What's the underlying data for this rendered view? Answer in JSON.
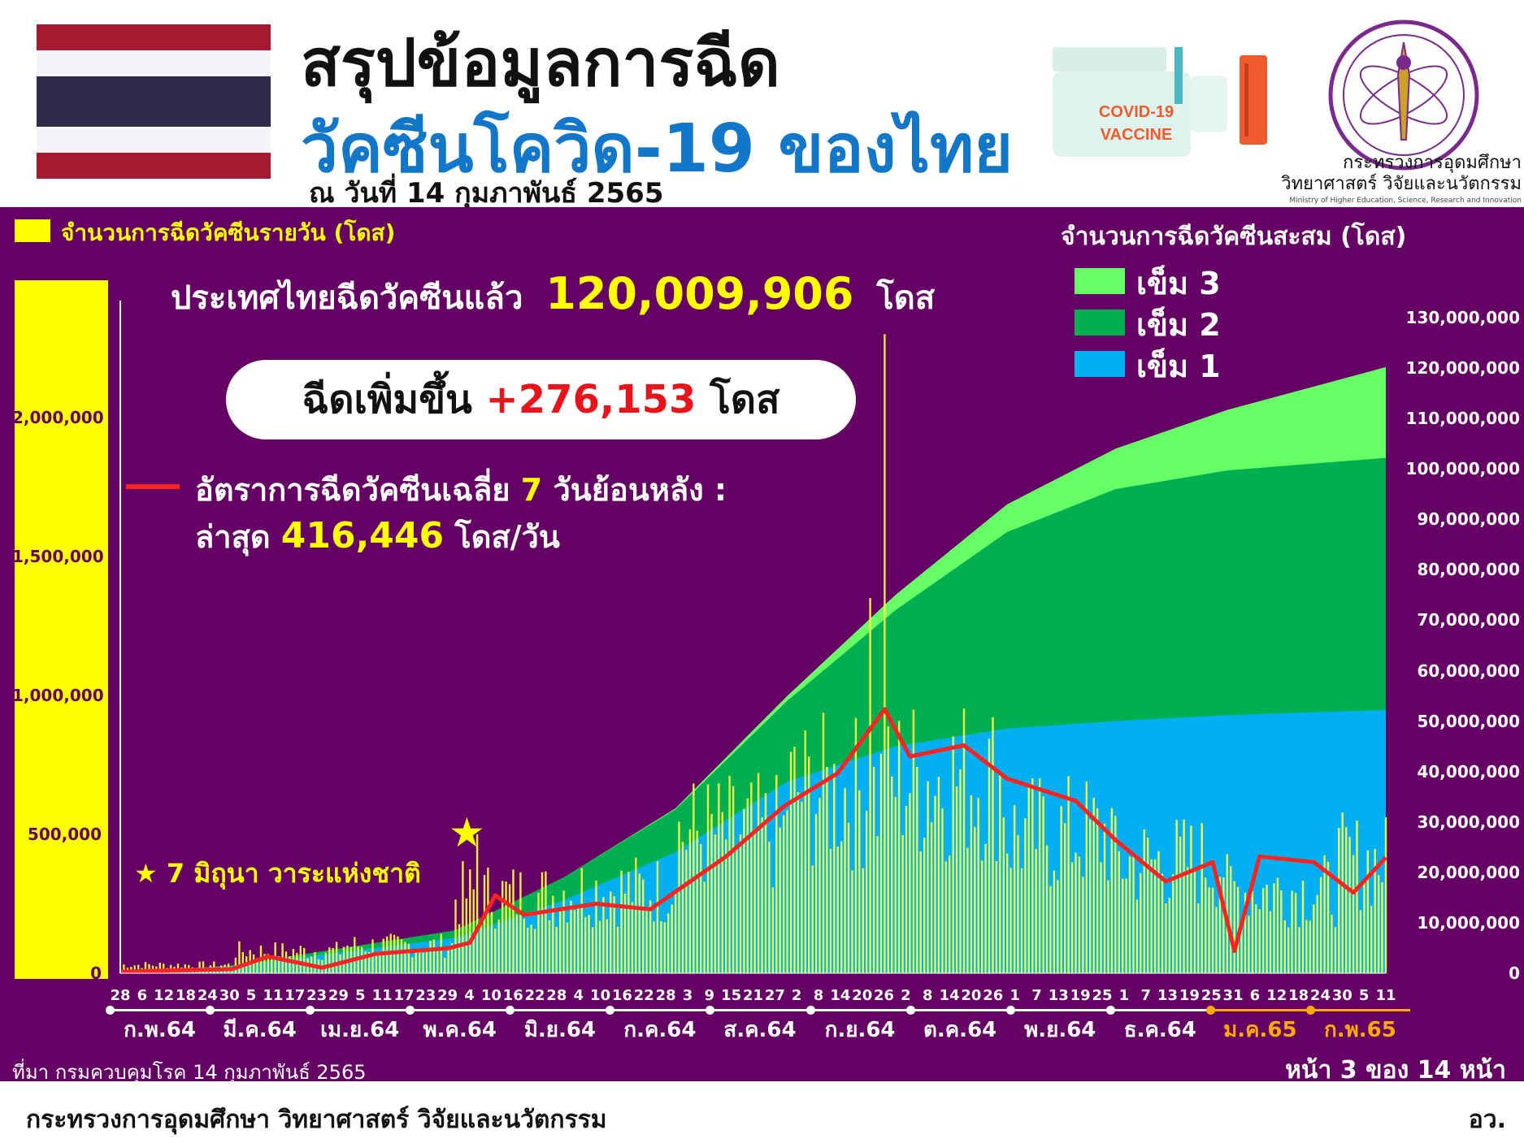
{
  "header": {
    "title_line1": "สรุปข้อมูลการฉีด",
    "title_line2": "วัคซีนโควิด-19 ของไทย",
    "date": "ณ วันที่ 14 กุมภาพันธ์ 2565",
    "vaccine_label_1": "COVID-19",
    "vaccine_label_2": "VACCINE",
    "ministry_th": "กระทรวงการอุดมศึกษา",
    "ministry_th_2": "วิทยาศาสตร์ วิจัยและนวัตกรรม",
    "ministry_en": "Ministry of Higher Education, Science, Research and Innovation",
    "colors": {
      "title_blue": "#1277c9",
      "panel": "#650065",
      "highlight": "#ffff00",
      "increase": "#e8141c"
    }
  },
  "summary": {
    "total_prefix": "ประเทศไทยฉีดวัคซีนแล้ว",
    "total_value": "120,009,906",
    "total_unit": "โดส",
    "increase_prefix": "ฉีดเพิ่มขึ้น",
    "increase_value": "+276,153",
    "increase_unit": "โดส",
    "avg_label_pre": "อัตราการฉีดวัคซีนเฉลี่ย",
    "avg_days": "7",
    "avg_label_post": "วันย้อนหลัง :",
    "avg_latest_label": "ล่าสุด",
    "avg_latest_value": "416,446",
    "avg_latest_unit": "โดส/วัน",
    "star_note": "7 มิถุนา วาระแห่งชาติ"
  },
  "legend": {
    "left_title": "จำนวนการฉีดวัคซีนรายวัน (โดส)",
    "right_title": "จำนวนการฉีดวัคซีนสะสม (โดส)",
    "items": [
      {
        "label": "เข็ม 3",
        "color": "#66ff66"
      },
      {
        "label": "เข็ม 2",
        "color": "#00b050"
      },
      {
        "label": "เข็ม 1",
        "color": "#00b0f0"
      }
    ]
  },
  "chart_data": {
    "type": "bar",
    "title": "",
    "left_axis": {
      "label": "จำนวนการฉีดวัคซีนรายวัน (โดส)",
      "ylim": [
        0,
        2450000
      ],
      "ticks": [
        "0",
        "500,000",
        "1,000,000",
        "1,500,000",
        "2,000,000"
      ]
    },
    "right_axis": {
      "label": "จำนวนการฉีดวัคซีนสะสม (โดส)",
      "ylim": [
        0,
        135000000
      ],
      "ticks": [
        "0",
        "10,000,000",
        "20,000,000",
        "30,000,000",
        "40,000,000",
        "50,000,000",
        "60,000,000",
        "70,000,000",
        "80,000,000",
        "90,000,000",
        "100,000,000",
        "110,000,000",
        "120,000,000",
        "130,000,000"
      ]
    },
    "x_day_ticks": [
      "28",
      "6",
      "12",
      "18",
      "24",
      "30",
      "5",
      "11",
      "17",
      "23",
      "29",
      "5",
      "11",
      "17",
      "23",
      "29",
      "4",
      "10",
      "16",
      "22",
      "28",
      "4",
      "10",
      "16",
      "22",
      "28",
      "3",
      "9",
      "15",
      "21",
      "27",
      "2",
      "8",
      "14",
      "20",
      "26",
      "2",
      "8",
      "14",
      "20",
      "26",
      "1",
      "7",
      "13",
      "19",
      "25",
      "1",
      "7",
      "13",
      "19",
      "25",
      "31",
      "6",
      "12",
      "18",
      "24",
      "30",
      "5",
      "11"
    ],
    "x_months": [
      {
        "label": "ก.พ.64",
        "highlight": false
      },
      {
        "label": "มี.ค.64",
        "highlight": false
      },
      {
        "label": "เม.ย.64",
        "highlight": false
      },
      {
        "label": "พ.ค.64",
        "highlight": false
      },
      {
        "label": "มิ.ย.64",
        "highlight": false
      },
      {
        "label": "ก.ค.64",
        "highlight": false
      },
      {
        "label": "ส.ค.64",
        "highlight": false
      },
      {
        "label": "ก.ย.64",
        "highlight": false
      },
      {
        "label": "ต.ค.64",
        "highlight": false
      },
      {
        "label": "พ.ย.64",
        "highlight": false
      },
      {
        "label": "ธ.ค.64",
        "highlight": false
      },
      {
        "label": "ม.ค.65",
        "highlight": true
      },
      {
        "label": "ก.พ.65",
        "highlight": true
      }
    ],
    "x_start": "2021-02-28",
    "x_end": "2022-02-14",
    "cumulative_series": [
      {
        "name": "เข็ม 1",
        "color": "#00b0f0",
        "values": [
          0,
          1500000,
          7000000,
          14500000,
          24000000,
          38000000,
          45000000,
          48500000,
          50000000,
          51200000,
          52200000
        ]
      },
      {
        "name": "เข็ม 2",
        "color": "#00b050",
        "values": [
          0,
          100000,
          1500000,
          4500000,
          8500000,
          16000000,
          27000000,
          39000000,
          46000000,
          48500000,
          50000000
        ]
      },
      {
        "name": "เข็ม 3",
        "color": "#66ff66",
        "values": [
          0,
          0,
          0,
          0,
          200000,
          1000000,
          3000000,
          5500000,
          8000000,
          12000000,
          18000000
        ]
      }
    ],
    "cumulative_dates": [
      "2021-02-28",
      "2021-04-01",
      "2021-06-01",
      "2021-07-01",
      "2021-08-01",
      "2021-09-01",
      "2021-10-01",
      "2021-11-01",
      "2021-12-01",
      "2022-01-01",
      "2022-02-14"
    ],
    "daily_series": {
      "name": "จำนวนการฉีดวัคซีนรายวัน (โดส)",
      "color": "#ffff44",
      "monthly_typical_values": [
        5000,
        30000,
        80000,
        100000,
        280000,
        300000,
        500000,
        650000,
        700000,
        500000,
        400000,
        300000,
        400000
      ],
      "peaks": [
        {
          "date": "2021-06-07",
          "value": 500000
        },
        {
          "date": "2021-09-24",
          "value": 1350000
        },
        {
          "date": "2021-09-28",
          "value": 2300000
        }
      ]
    },
    "avg7_series": {
      "name": "อัตราการฉีดวัคซีนเฉลี่ย 7 วันย้อนหลัง",
      "color": "#ff2222",
      "dates": [
        "2021-02-28",
        "2021-03-31",
        "2021-04-10",
        "2021-04-25",
        "2021-05-10",
        "2021-05-30",
        "2021-06-05",
        "2021-06-12",
        "2021-06-20",
        "2021-07-10",
        "2021-07-25",
        "2021-08-15",
        "2021-08-31",
        "2021-09-15",
        "2021-09-28",
        "2021-10-05",
        "2021-10-20",
        "2021-11-01",
        "2021-11-20",
        "2021-12-01",
        "2021-12-15",
        "2021-12-28",
        "2022-01-03",
        "2022-01-10",
        "2022-01-25",
        "2022-02-05",
        "2022-02-14"
      ],
      "values": [
        5000,
        15000,
        60000,
        20000,
        70000,
        90000,
        110000,
        280000,
        210000,
        250000,
        230000,
        420000,
        600000,
        720000,
        950000,
        780000,
        820000,
        700000,
        620000,
        480000,
        330000,
        400000,
        80000,
        420000,
        400000,
        290000,
        416446
      ]
    }
  },
  "footer": {
    "source": "ที่มา กรมควบคุมโรค 14 กุมภาพันธ์ 2565",
    "page": "หน้า 3 ของ 14 หน้า",
    "org_full": "กระทรวงการอุดมศึกษา วิทยาศาสตร์ วิจัยและนวัตกรรม",
    "org_abbr": "อว."
  }
}
